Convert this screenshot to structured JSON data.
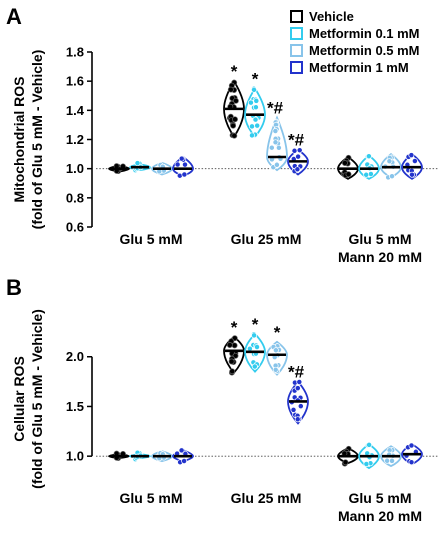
{
  "colors": {
    "Vehicle": "#000000",
    "Metformin 0.1 mM": "#33ccee",
    "Metformin 0.5 mM": "#88c4ea",
    "Metformin 1 mM": "#2233cc",
    "text": "#000000"
  },
  "chart_data": [
    {
      "panel": "A",
      "type": "violin",
      "ylabel_line1": "Mitochondrial ROS",
      "ylabel_line2": "(fold of Glu 5 mM - Vehicle)",
      "ylim": [
        0.6,
        1.8
      ],
      "yticks": [
        0.6,
        0.8,
        1.0,
        1.2,
        1.4,
        1.6,
        1.8
      ],
      "baseline": 1.0,
      "categories": [
        "Glu 5 mM",
        "Glu 25 mM",
        "Glu 5 mM\nMann 20 mM"
      ],
      "legend": {
        "placement": "top-right",
        "entries": [
          "Vehicle",
          "Metformin 0.1 mM",
          "Metformin 0.5 mM",
          "Metformin 1 mM"
        ]
      },
      "series": [
        {
          "name": "Vehicle",
          "values": [
            1.0,
            1.41,
            1.0
          ],
          "ranges": [
            [
              0.98,
              1.02
            ],
            [
              1.22,
              1.6
            ],
            [
              0.93,
              1.08
            ]
          ],
          "annotations": [
            "",
            "*",
            ""
          ]
        },
        {
          "name": "Metformin 0.1 mM",
          "values": [
            1.01,
            1.37,
            1.0
          ],
          "ranges": [
            [
              0.99,
              1.03
            ],
            [
              1.22,
              1.55
            ],
            [
              0.93,
              1.09
            ]
          ],
          "annotations": [
            "",
            "*",
            ""
          ]
        },
        {
          "name": "Metformin 0.5 mM",
          "values": [
            1.0,
            1.08,
            1.01
          ],
          "ranges": [
            [
              0.96,
              1.04
            ],
            [
              0.99,
              1.35
            ],
            [
              0.94,
              1.1
            ]
          ],
          "annotations": [
            "",
            "*#",
            ""
          ]
        },
        {
          "name": "Metformin 1 mM",
          "values": [
            1.0,
            1.05,
            1.01
          ],
          "ranges": [
            [
              0.95,
              1.08
            ],
            [
              0.96,
              1.13
            ],
            [
              0.93,
              1.1
            ]
          ],
          "annotations": [
            "",
            "*#",
            ""
          ]
        }
      ]
    },
    {
      "panel": "B",
      "type": "violin",
      "ylabel_line1": "Cellular ROS",
      "ylabel_line2": "(fold of Glu 5 mM - Vehicle)",
      "ylim": [
        0.7,
        2.45
      ],
      "yticks": [
        1.0,
        1.5,
        2.0
      ],
      "baseline": 1.0,
      "categories": [
        "Glu 5 mM",
        "Glu 25 mM",
        "Glu 5 mM\nMann 20 mM"
      ],
      "series": [
        {
          "name": "Vehicle",
          "values": [
            1.0,
            2.06,
            1.0
          ],
          "ranges": [
            [
              0.98,
              1.02
            ],
            [
              1.84,
              2.2
            ],
            [
              0.93,
              1.08
            ]
          ],
          "annotations": [
            "",
            "*",
            ""
          ]
        },
        {
          "name": "Metformin 0.1 mM",
          "values": [
            1.0,
            2.05,
            1.0
          ],
          "ranges": [
            [
              0.98,
              1.02
            ],
            [
              1.85,
              2.23
            ],
            [
              0.88,
              1.12
            ]
          ],
          "annotations": [
            "",
            "*",
            ""
          ]
        },
        {
          "name": "Metformin 0.5 mM",
          "values": [
            1.0,
            2.02,
            1.0
          ],
          "ranges": [
            [
              0.95,
              1.05
            ],
            [
              1.82,
              2.15
            ],
            [
              0.9,
              1.1
            ]
          ],
          "annotations": [
            "",
            "*",
            ""
          ]
        },
        {
          "name": "Metformin 1 mM",
          "values": [
            1.0,
            1.55,
            1.02
          ],
          "ranges": [
            [
              0.95,
              1.06
            ],
            [
              1.33,
              1.75
            ],
            [
              0.92,
              1.12
            ]
          ],
          "annotations": [
            "",
            "*#",
            ""
          ]
        }
      ]
    }
  ]
}
